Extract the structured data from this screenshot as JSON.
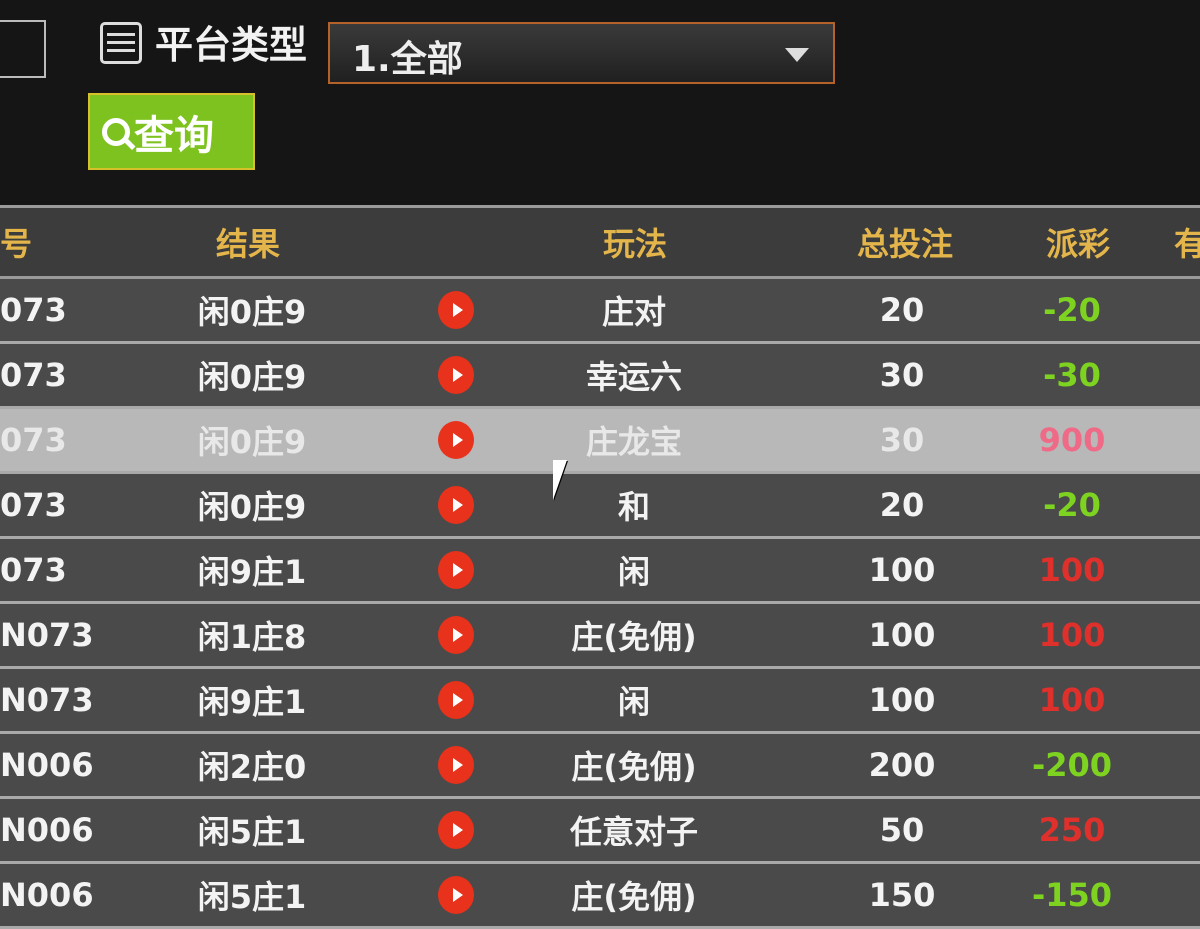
{
  "filters": {
    "platform_label": "平台类型",
    "platform_value": "1.全部",
    "query_label": "查询",
    "icons": {
      "platform": "list-icon",
      "query": "search-icon",
      "dropdown": "caret-down-icon"
    }
  },
  "table": {
    "headers": {
      "id": "号",
      "result": "结果",
      "play": "玩法",
      "bet": "总投注",
      "payout": "派彩",
      "extra": "有"
    },
    "colors": {
      "header": "#e3b54a",
      "negative": "#7ed321",
      "positive": "#e0302c"
    },
    "rows": [
      {
        "id": "073",
        "result": "闲0庄9",
        "play": "庄对",
        "bet": "20",
        "payout": "-20"
      },
      {
        "id": "073",
        "result": "闲0庄9",
        "play": "幸运六",
        "bet": "30",
        "payout": "-30"
      },
      {
        "id": "073",
        "result": "闲0庄9",
        "play": "庄龙宝",
        "bet": "30",
        "payout": "900"
      },
      {
        "id": "073",
        "result": "闲0庄9",
        "play": "和",
        "bet": "20",
        "payout": "-20"
      },
      {
        "id": "073",
        "result": "闲9庄1",
        "play": "闲",
        "bet": "100",
        "payout": "100"
      },
      {
        "id": "N073",
        "result": "闲1庄8",
        "play": "庄(免佣)",
        "bet": "100",
        "payout": "100"
      },
      {
        "id": "N073",
        "result": "闲9庄1",
        "play": "闲",
        "bet": "100",
        "payout": "100"
      },
      {
        "id": "N006",
        "result": "闲2庄0",
        "play": "庄(免佣)",
        "bet": "200",
        "payout": "-200"
      },
      {
        "id": "N006",
        "result": "闲5庄1",
        "play": "任意对子",
        "bet": "50",
        "payout": "250"
      },
      {
        "id": "N006",
        "result": "闲5庄1",
        "play": "庄(免佣)",
        "bet": "150",
        "payout": "-150"
      }
    ]
  }
}
